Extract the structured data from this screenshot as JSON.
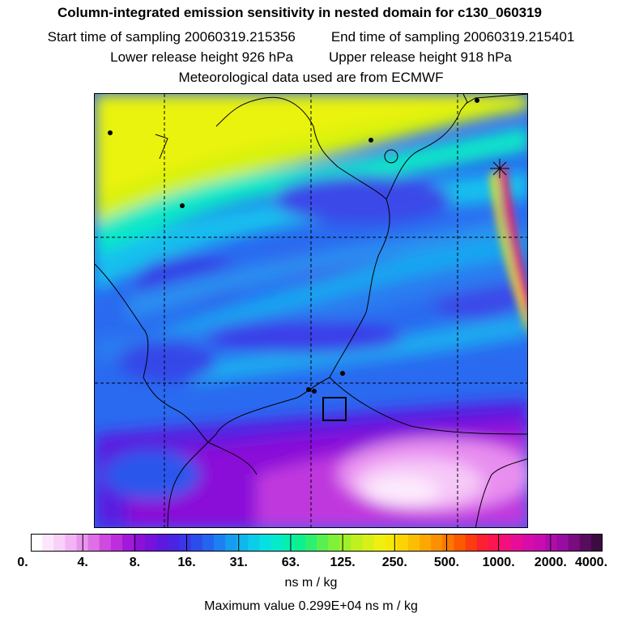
{
  "header": {
    "title": "Column-integrated emission sensitivity in nested domain for c130_060319",
    "start_label": "Start time of sampling 20060319.215356",
    "end_label": "End time of sampling 20060319.215401",
    "lower_label": "Lower release height  926 hPa",
    "upper_label": "Upper release height  918 hPa",
    "met_label": "Meteorological data used are from ECMWF"
  },
  "colorbar": {
    "ticks": [
      "0.",
      "4.",
      "8.",
      "16.",
      "31.",
      "63.",
      "125.",
      "250.",
      "500.",
      "1000.",
      "2000.",
      "4000."
    ],
    "colors": [
      "#ffffff",
      "#fde6fd",
      "#f8d0f8",
      "#f2b5f4",
      "#e894ee",
      "#de6fe6",
      "#cf4ae0",
      "#bd2fdc",
      "#a319da",
      "#8c10d8",
      "#7612dc",
      "#5e18e0",
      "#4a24e4",
      "#3a36e8",
      "#2c4cec",
      "#2464ee",
      "#1d80f0",
      "#169cf0",
      "#10b6ee",
      "#0acdea",
      "#06e0e0",
      "#06eacc",
      "#08eeb0",
      "#0cf090",
      "#2cf070",
      "#58f050",
      "#80f038",
      "#a0f028",
      "#c0f020",
      "#d8f018",
      "#eef010",
      "#f8e808",
      "#fcd404",
      "#fcbe02",
      "#fca800",
      "#fc9000",
      "#fc7600",
      "#fc5a00",
      "#fc3c10",
      "#fc2030",
      "#fc1450",
      "#f4107c",
      "#e80c98",
      "#d80ca8",
      "#c80cb0",
      "#b00cac",
      "#980ca0",
      "#780c80",
      "#580c60",
      "#3c0c40"
    ]
  },
  "units": "ns m / kg",
  "max_value_label": "Maximum value  0.299E+04 ns m / kg"
}
